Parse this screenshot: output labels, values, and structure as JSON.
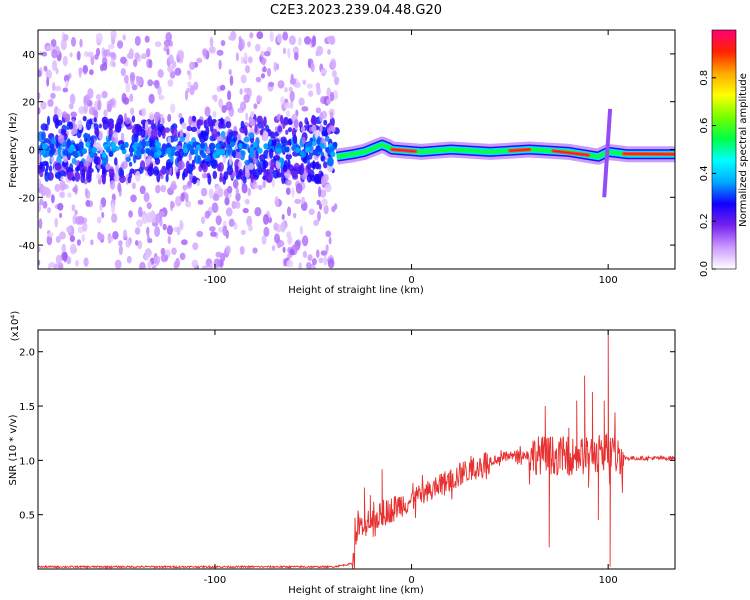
{
  "title": "C2E3.2023.239.04.48.G20",
  "chart_data": [
    {
      "type": "heatmap",
      "xlabel": "Height of straight line (km)",
      "ylabel": "Frequency (Hz)",
      "xlim": [
        -190,
        134
      ],
      "ylim": [
        -50,
        50
      ],
      "x_ticks": [
        -100,
        0,
        100
      ],
      "y_ticks": [
        -40,
        -20,
        0,
        20,
        40
      ],
      "colorbar": {
        "label": "Normalized spectral amplitude",
        "range": [
          0.0,
          1.0
        ],
        "ticks": [
          0.0,
          0.2,
          0.4,
          0.6,
          0.8
        ],
        "colormap": "rainbow",
        "stops": [
          "#ffffff",
          "#cc99ff",
          "#7722ee",
          "#1100ff",
          "#00aaff",
          "#00ffff",
          "#00ff44",
          "#77ff00",
          "#ffff00",
          "#ffaa00",
          "#ff2200",
          "#ff0077"
        ]
      },
      "noise_region_x": [
        -190,
        -38
      ],
      "noise_region_freq": [
        -50,
        48
      ],
      "ridge": [
        {
          "x": -38,
          "f": -3
        },
        {
          "x": -30,
          "f": -2
        },
        {
          "x": -24,
          "f": -1
        },
        {
          "x": -18,
          "f": 1
        },
        {
          "x": -15,
          "f": 2
        },
        {
          "x": -12,
          "f": 1
        },
        {
          "x": -10,
          "f": 0
        },
        {
          "x": 5,
          "f": -1
        },
        {
          "x": 20,
          "f": 0
        },
        {
          "x": 40,
          "f": -1
        },
        {
          "x": 60,
          "f": 0
        },
        {
          "x": 80,
          "f": -1
        },
        {
          "x": 95,
          "f": -3
        },
        {
          "x": 100,
          "f": -1
        },
        {
          "x": 110,
          "f": -2
        },
        {
          "x": 134,
          "f": -2
        }
      ],
      "peak_segments": [
        [
          -10,
          2
        ],
        [
          50,
          60
        ],
        [
          72,
          90
        ],
        [
          108,
          134
        ]
      ],
      "spike": {
        "x": 98,
        "f_range": [
          -20,
          17
        ]
      },
      "grid": false
    },
    {
      "type": "line",
      "xlabel": "Height of straight line (km)",
      "ylabel": "SNR (10 * v/v)",
      "y_multiplier": "(x10⁴)",
      "xlim": [
        -190,
        134
      ],
      "ylim": [
        0,
        2.2
      ],
      "x_ticks": [
        -100,
        0,
        100
      ],
      "y_ticks": [
        0.5,
        1.0,
        1.5,
        2.0
      ],
      "color": "#e83030",
      "series": [
        {
          "values": {
            "x": [
              -190,
              -40,
              -30,
              -27,
              -24,
              -20,
              -15,
              -10,
              -5,
              0,
              5,
              10,
              20,
              30,
              40,
              50,
              60,
              70,
              80,
              90,
              95,
              100,
              105,
              110,
              120,
              134
            ],
            "y": [
              0.02,
              0.02,
              0.05,
              0.4,
              0.35,
              0.45,
              0.5,
              0.55,
              0.6,
              0.63,
              0.66,
              0.72,
              0.82,
              0.92,
              1.0,
              1.04,
              1.05,
              1.05,
              1.04,
              1.04,
              1.06,
              1.1,
              1.05,
              1.02,
              1.02,
              1.02
            ]
          },
          "spikes": [
            {
              "x": -24,
              "y": 0.75
            },
            {
              "x": -21,
              "y": 0.68
            },
            {
              "x": -15,
              "y": 0.92
            },
            {
              "x": 68,
              "y": 1.5
            },
            {
              "x": 70,
              "y": 0.2
            },
            {
              "x": 72,
              "y": 1.1
            },
            {
              "x": 80,
              "y": 1.3
            },
            {
              "x": 84,
              "y": 1.55
            },
            {
              "x": 88,
              "y": 1.78
            },
            {
              "x": 90,
              "y": 0.75
            },
            {
              "x": 92,
              "y": 1.63
            },
            {
              "x": 95,
              "y": 0.45
            },
            {
              "x": 98,
              "y": 1.55
            },
            {
              "x": 100,
              "y": 2.22
            },
            {
              "x": 101,
              "y": 0.02
            },
            {
              "x": 104,
              "y": 0.9
            }
          ]
        }
      ],
      "grid": false
    }
  ]
}
